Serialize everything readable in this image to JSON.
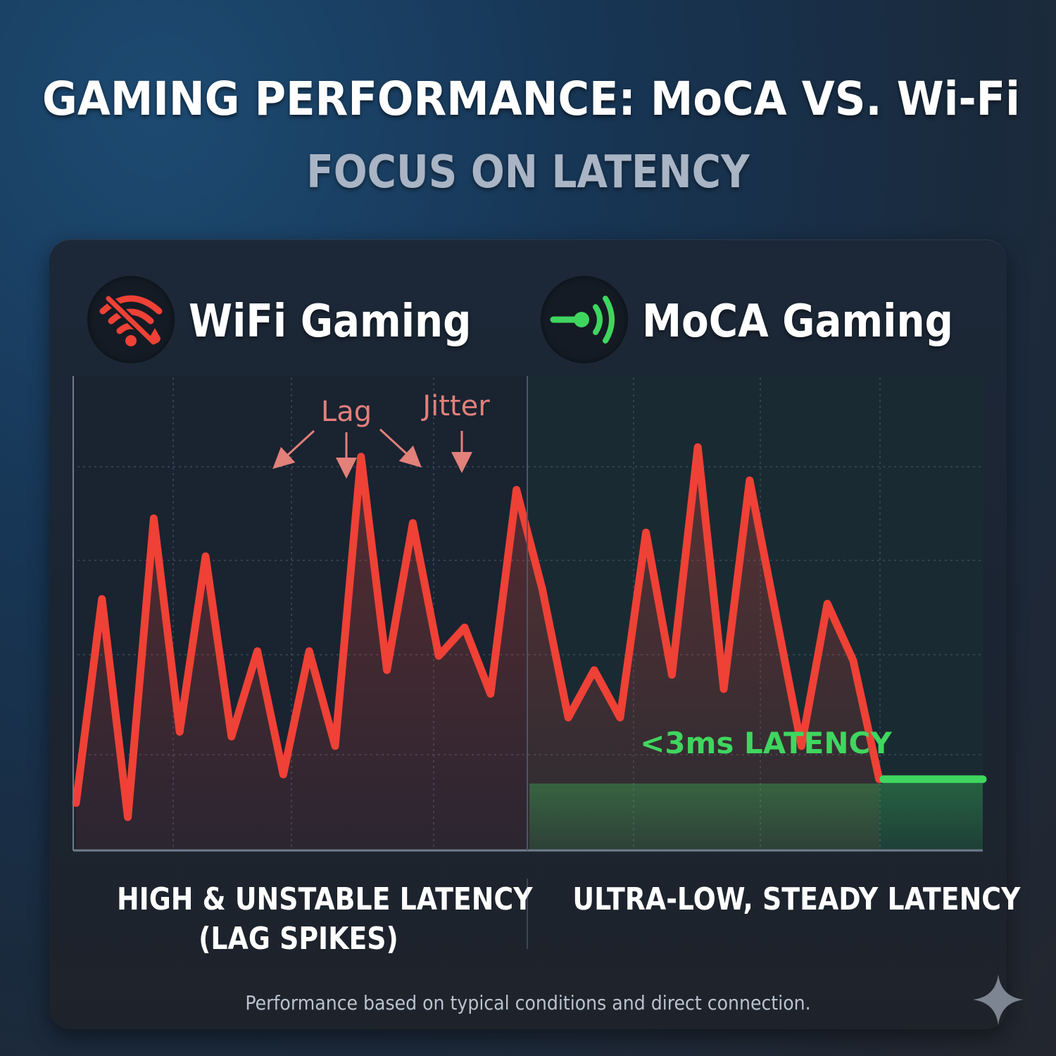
{
  "header": {
    "title": "GAMING PERFORMANCE: MoCA VS. Wi-Fi",
    "subtitle": "FOCUS ON LATENCY"
  },
  "panels": {
    "wifi": {
      "title": "WiFi Gaming",
      "icon": "wifi-broken-icon",
      "caption_line1": "HIGH & UNSTABLE LATENCY",
      "caption_line2": "(LAG SPIKES)"
    },
    "moca": {
      "title": "MoCA Gaming",
      "icon": "signal-connector-icon",
      "caption": "ULTRA-LOW, STEADY LATENCY"
    }
  },
  "chart_data": {
    "type": "line",
    "ylim": [
      0,
      100
    ],
    "grid": true,
    "colors": {
      "wifi": "#ef4136",
      "moca": "#3fd65f"
    },
    "series": [
      {
        "name": "WiFi Gaming",
        "x": [
          0,
          1,
          2,
          3,
          4,
          5,
          6,
          7,
          8,
          9,
          10,
          11,
          12,
          13,
          14,
          15,
          16,
          17,
          18,
          19,
          20,
          21,
          22,
          23,
          24,
          25,
          26,
          27,
          28,
          29,
          30,
          31,
          32,
          33,
          34,
          35
        ],
        "values": [
          10,
          53,
          7,
          70,
          25,
          62,
          24,
          42,
          16,
          42,
          22,
          83,
          38,
          69,
          41,
          47,
          33,
          76,
          55,
          28,
          38,
          28,
          67,
          37,
          85,
          34,
          78,
          50,
          22,
          52,
          40,
          15,
          14,
          14,
          14,
          14
        ]
      },
      {
        "name": "MoCA Gaming",
        "x": [
          31,
          35
        ],
        "values": [
          15,
          15
        ]
      }
    ],
    "annotations": [
      {
        "text": "Lag",
        "points_to": [
          11,
          17,
          24
        ]
      },
      {
        "text": "Jitter",
        "points_to": [
          26
        ]
      },
      {
        "text": "<3ms LATENCY",
        "series": "MoCA Gaming"
      }
    ]
  },
  "footnote": "Performance based on typical conditions and direct connection."
}
